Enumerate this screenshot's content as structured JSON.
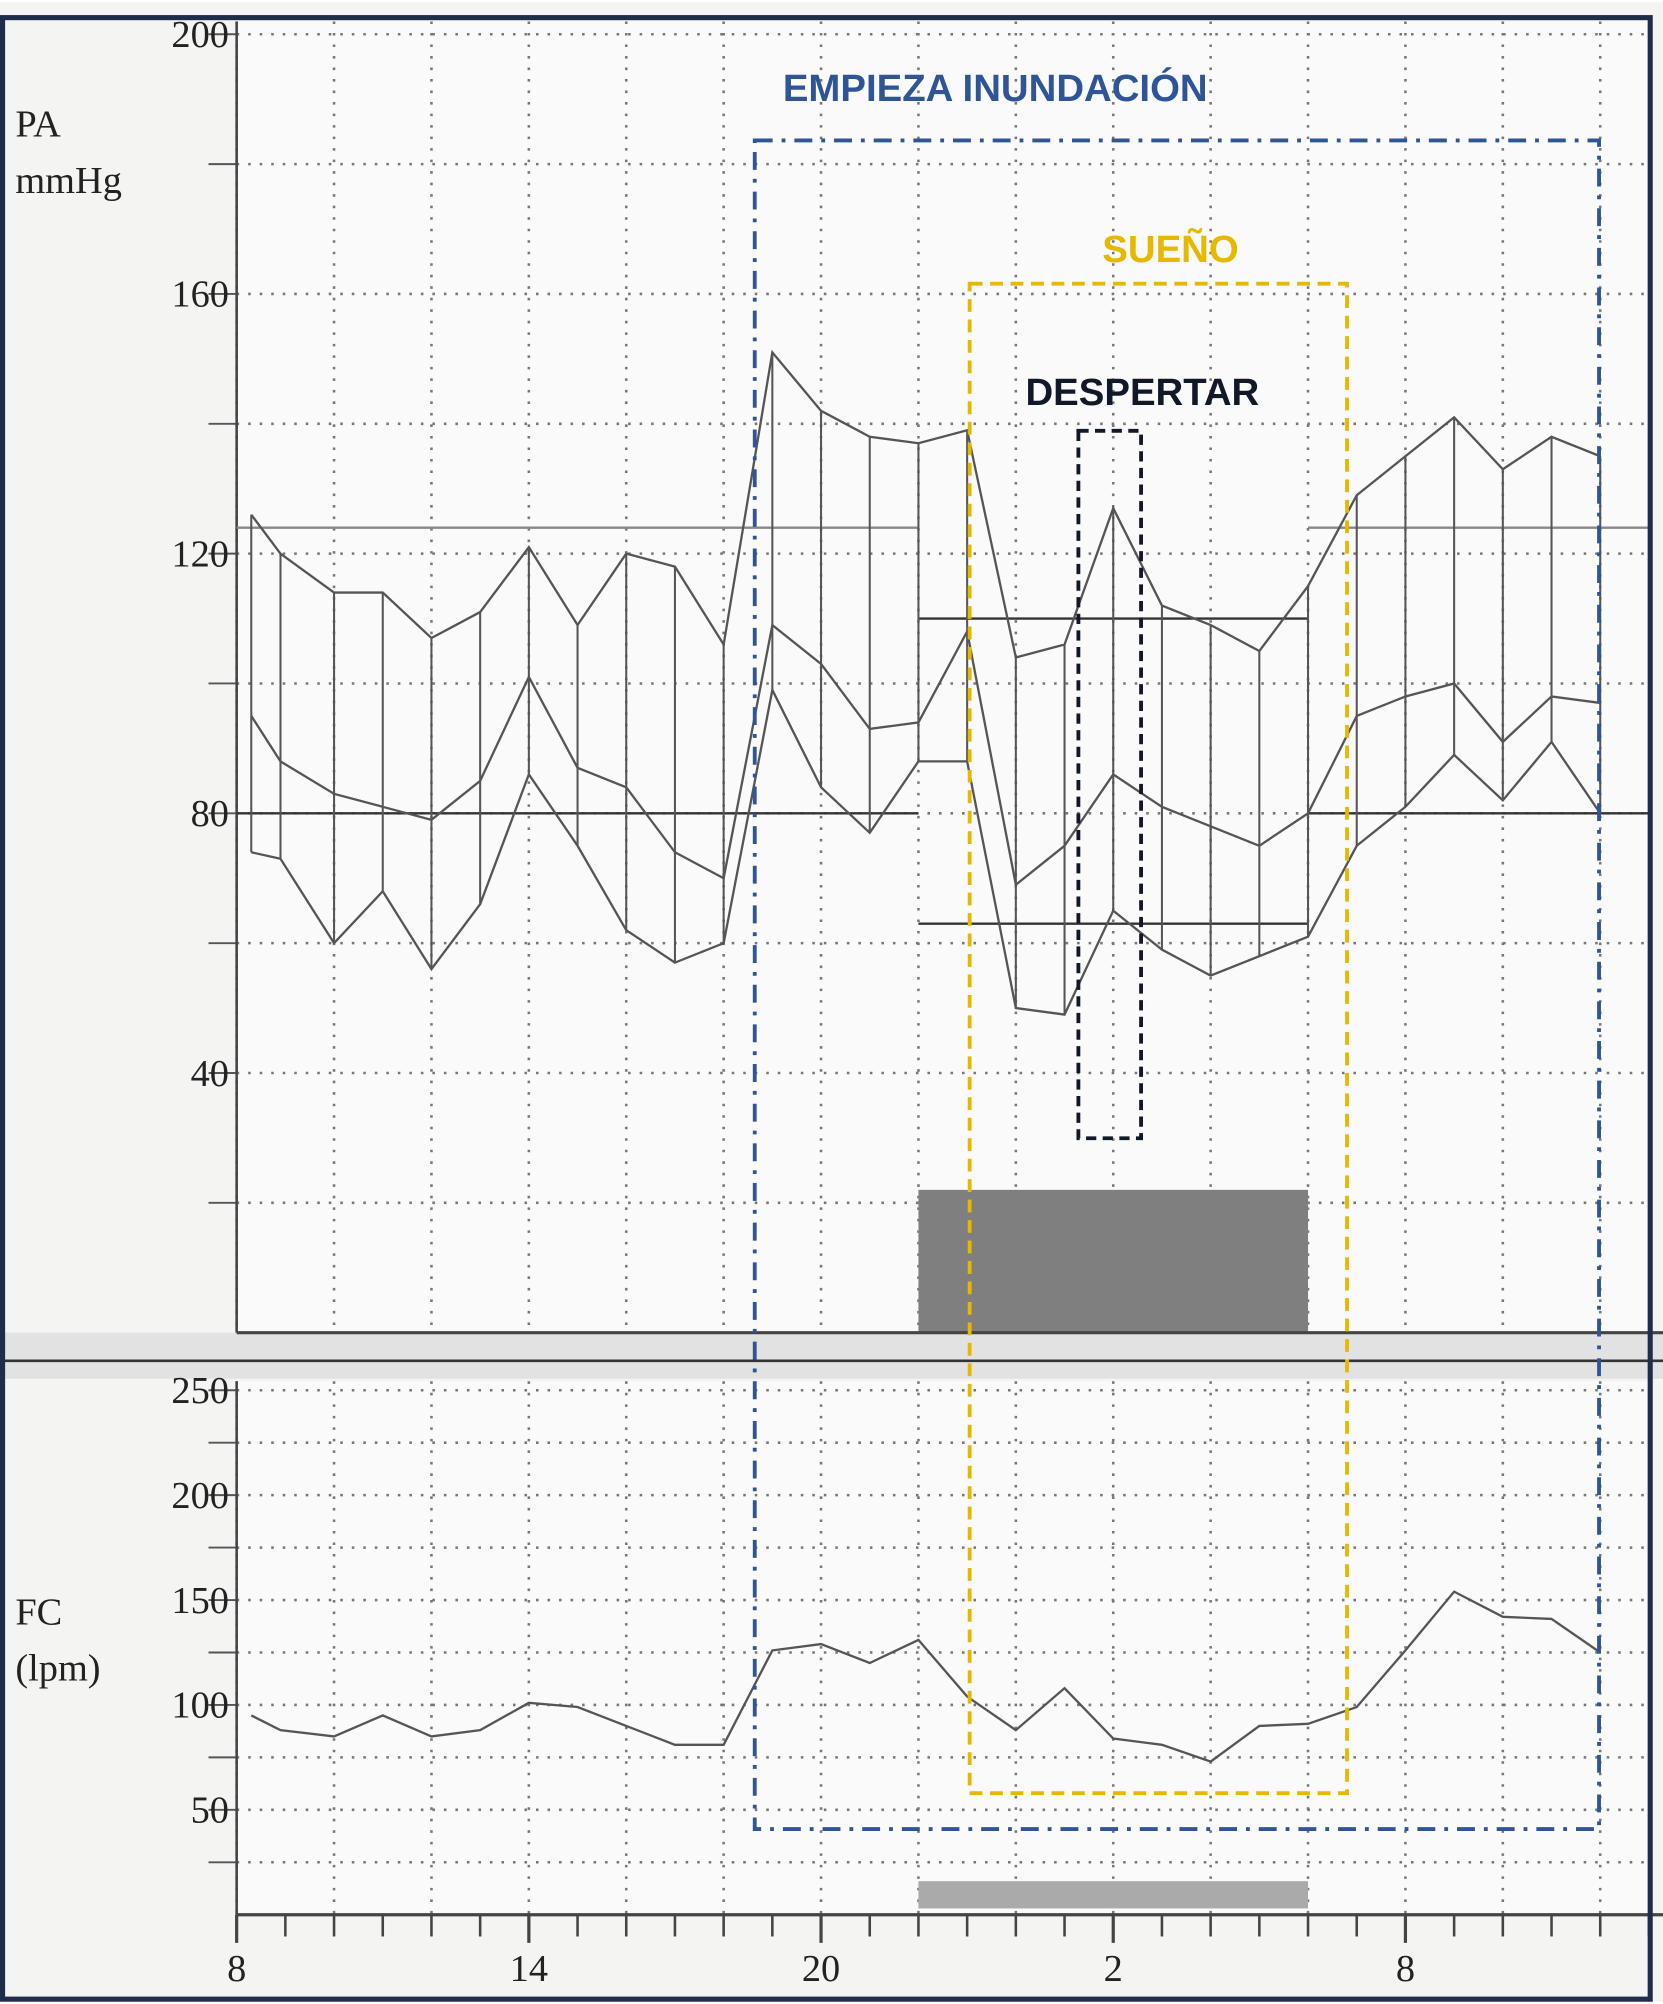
{
  "chart_data": [
    {
      "type": "line",
      "ylabel": [
        "PA",
        "mmHg"
      ],
      "x": [
        8.3,
        8.9,
        10,
        11,
        12,
        13,
        14,
        15,
        16,
        17,
        18,
        19,
        20,
        21,
        22,
        23,
        24,
        25,
        26,
        27,
        28,
        29,
        30,
        31,
        32,
        33,
        34,
        35,
        36
      ],
      "series": [
        {
          "color": "#555555",
          "values": [
            126,
            120,
            114,
            114,
            107,
            111,
            121,
            109,
            120,
            118,
            106,
            151,
            142,
            138,
            137,
            139,
            104,
            106,
            127,
            112,
            109,
            105,
            115,
            129,
            135,
            141,
            133,
            138,
            135
          ]
        },
        {
          "color": "#555555",
          "values": [
            95,
            88,
            83,
            81,
            79,
            85,
            101,
            87,
            84,
            74,
            70,
            109,
            103,
            93,
            94,
            108,
            69,
            75,
            86,
            81,
            78,
            75,
            80,
            95,
            98,
            100,
            91,
            98,
            97
          ]
        },
        {
          "color": "#555555",
          "values": [
            74,
            73,
            60,
            68,
            56,
            66,
            86,
            75,
            62,
            57,
            60,
            99,
            84,
            77,
            88,
            88,
            50,
            49,
            65,
            59,
            55,
            58,
            61,
            75,
            81,
            89,
            82,
            91,
            80
          ]
        }
      ],
      "reference_lines": [
        {
          "x": [
            8,
            22
          ],
          "values": [
            124,
            80
          ]
        },
        {
          "x": [
            22,
            30
          ],
          "values": [
            110,
            63
          ]
        },
        {
          "x": [
            30,
            37
          ],
          "values": [
            124,
            80
          ]
        }
      ],
      "shade": {
        "x": [
          22,
          30
        ],
        "y": [
          0,
          22
        ],
        "color": "#7f7f7f"
      },
      "xlim": [
        8,
        37
      ],
      "ylim": [
        0,
        200
      ],
      "yticks": [
        40,
        80,
        120,
        160,
        200
      ],
      "y_minor_grid": [
        20,
        60,
        100,
        140,
        180
      ],
      "x_grid": [
        8,
        10,
        12,
        14,
        16,
        18,
        20,
        22,
        24,
        26,
        28,
        30,
        32,
        34,
        36
      ],
      "annotations": [
        {
          "text": "EMPIEZA INUNDACIÓN",
          "color": "#2f5597"
        },
        {
          "text": "SUEÑO",
          "color": "#e6b800"
        },
        {
          "text": "DESPERTAR",
          "color": "#111827"
        }
      ]
    },
    {
      "type": "line",
      "ylabel": [
        "FC",
        "(lpm)"
      ],
      "x": [
        8.3,
        8.9,
        10,
        11,
        12,
        13,
        14,
        15,
        16,
        17,
        18,
        19,
        20,
        21,
        22,
        23,
        24,
        25,
        26,
        27,
        28,
        29,
        30,
        31,
        32,
        33,
        34,
        35,
        36
      ],
      "series": [
        {
          "color": "#555555",
          "values": [
            95,
            88,
            85,
            95,
            85,
            88,
            101,
            99,
            90,
            81,
            81,
            126,
            129,
            120,
            131,
            104,
            88,
            108,
            84,
            81,
            73,
            90,
            91,
            99,
            126,
            154,
            142,
            141,
            125
          ]
        }
      ],
      "shade": {
        "x": [
          22,
          30
        ],
        "y": [
          3,
          16
        ],
        "color": "#aaaaaa"
      },
      "xlim": [
        8,
        37
      ],
      "ylim": [
        0,
        250
      ],
      "yticks": [
        50,
        100,
        150,
        200,
        250
      ],
      "y_minor_grid": [
        25,
        75,
        125,
        175,
        225
      ],
      "x_grid": [
        8,
        10,
        12,
        14,
        16,
        18,
        20,
        22,
        24,
        26,
        28,
        30,
        32,
        34,
        36
      ],
      "xticks": [
        8,
        14,
        20,
        {
          "value": 26,
          "label": "2"
        },
        {
          "value": 32,
          "label": "8"
        }
      ],
      "x_minor_ticks": [
        9,
        10,
        11,
        12,
        13,
        15,
        16,
        17,
        18,
        19,
        21,
        22,
        23,
        24,
        25,
        27,
        28,
        29,
        30,
        31,
        33,
        34,
        35,
        36,
        37
      ]
    }
  ]
}
